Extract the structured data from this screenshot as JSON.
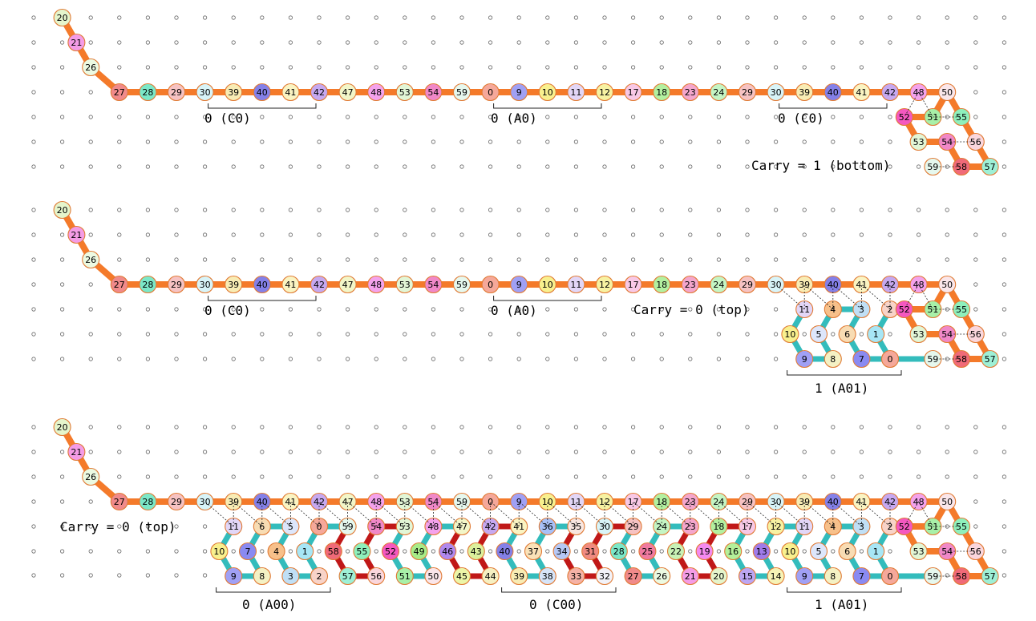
{
  "colors": {
    "orange": "#f47a2a",
    "teal": "#33bcbc",
    "red": "#c01818",
    "bead_stroke": "#e07a34",
    "dot": "#666666",
    "palette": {
      "0": "#f5a89a",
      "1": "#a7e6f5",
      "2": "#f8d3c8",
      "3": "#c0dff5",
      "4": "#f7c08a",
      "5": "#dde6fb",
      "6": "#f8dcb3",
      "7": "#8a8af2",
      "8": "#f4f1c4",
      "9": "#a0a0f5",
      "10": "#f8f08e",
      "11": "#e2d6f7",
      "12": "#f7f2a2",
      "13": "#a07be9",
      "14": "#f6f3b6",
      "15": "#bca6f3",
      "16": "#b4f09a",
      "17": "#f8c8e6",
      "18": "#b3f0a0",
      "19": "#f48af0",
      "20": "#e5f5cc",
      "21": "#f49ce6",
      "22": "#c8f2b6",
      "23": "#f4a6cc",
      "24": "#c4f5c4",
      "25": "#f07aa0",
      "26": "#ecfae2",
      "27": "#f08a8a",
      "28": "#7be8c8",
      "29": "#f6c2c2",
      "30": "#d8f4f8",
      "31": "#f08a80",
      "32": "#f2f2f8",
      "33": "#f5b2a6",
      "34": "#b6c8f5",
      "35": "#f8e6e0",
      "36": "#a8c0f7",
      "37": "#fae2b8",
      "38": "#d6e4f8",
      "39": "#f8ecb4",
      "40": "#8480e8",
      "41": "#faf4c2",
      "42": "#c6a8f0",
      "43": "#dcf09c",
      "44": "#f6f0c2",
      "45": "#ecf6a8",
      "46": "#b088ee",
      "47": "#f2f6c8",
      "48": "#f4a2ec",
      "49": "#a8ec88",
      "50": "#fae6ea",
      "51": "#a8f0a8",
      "52": "#f458c0",
      "53": "#e2f6d6",
      "54": "#f088c8",
      "55": "#8ef0bc",
      "56": "#fad6dc",
      "57": "#9ef0d6",
      "58": "#f06a78",
      "59": "#e6f8ee"
    }
  },
  "panels": [
    {
      "id": "panel-1",
      "labels": [
        "0 (C0)",
        "0 (A0)",
        "0 (C0)",
        "Carry = 1 (bottom)"
      ],
      "top_row": [
        "27",
        "28",
        "29",
        "30",
        "39",
        "40",
        "41",
        "42",
        "47",
        "48",
        "53",
        "54",
        "59",
        "0",
        "9",
        "10",
        "11",
        "12",
        "17",
        "18",
        "23",
        "24",
        "29",
        "30",
        "39",
        "40",
        "41",
        "42",
        "48",
        "50"
      ],
      "diag": [
        "20",
        "21",
        "26"
      ],
      "tail": [
        "52",
        "51",
        "55",
        "53",
        "54",
        "56",
        "59",
        "58",
        "57"
      ],
      "blocks": []
    },
    {
      "id": "panel-2",
      "labels": [
        "0 (C0)",
        "0 (A0)",
        "Carry = 0 (top)",
        "1 (A01)"
      ],
      "top_row": [
        "27",
        "28",
        "29",
        "30",
        "39",
        "40",
        "41",
        "42",
        "47",
        "48",
        "53",
        "54",
        "59",
        "0",
        "9",
        "10",
        "11",
        "12",
        "17",
        "18",
        "23",
        "24",
        "29",
        "30",
        "39",
        "40",
        "41",
        "42",
        "48",
        "50"
      ],
      "diag": [
        "20",
        "21",
        "26"
      ],
      "tail": [
        "52",
        "51",
        "55",
        "53",
        "54",
        "56",
        "59",
        "58",
        "57"
      ],
      "blocks": [
        {
          "row1": [
            "11",
            "4",
            "3",
            "2"
          ],
          "row2": [
            "10",
            "5",
            "6",
            "1"
          ],
          "row3": [
            "9",
            "8",
            "7",
            "0"
          ]
        }
      ]
    },
    {
      "id": "panel-3",
      "labels": [
        "Carry = 0 (top)",
        "0 (A00)",
        "0 (C00)",
        "1 (A01)"
      ],
      "top_row": [
        "27",
        "28",
        "29",
        "30",
        "39",
        "40",
        "41",
        "42",
        "47",
        "48",
        "53",
        "54",
        "59",
        "0",
        "9",
        "10",
        "11",
        "12",
        "17",
        "18",
        "23",
        "24",
        "29",
        "30",
        "39",
        "40",
        "41",
        "42",
        "48",
        "50"
      ],
      "diag": [
        "20",
        "21",
        "26"
      ],
      "tail": [
        "52",
        "51",
        "55",
        "53",
        "54",
        "56",
        "59",
        "58",
        "57"
      ],
      "blocks": [
        {
          "row1": [
            "11",
            "6",
            "5",
            "0",
            "59",
            "54",
            "53",
            "48",
            "47",
            "42",
            "41",
            "36",
            "35",
            "30",
            "29",
            "24",
            "23",
            "18",
            "17",
            "12",
            "11",
            "4",
            "3",
            "2"
          ],
          "row2": [
            "10",
            "7",
            "4",
            "1",
            "58",
            "55",
            "52",
            "49",
            "46",
            "43",
            "40",
            "37",
            "34",
            "31",
            "28",
            "25",
            "22",
            "19",
            "16",
            "13",
            "10",
            "5",
            "6",
            "1"
          ],
          "row3": [
            "9",
            "8",
            "3",
            "2",
            "57",
            "56",
            "51",
            "50",
            "45",
            "44",
            "39",
            "38",
            "33",
            "32",
            "27",
            "26",
            "21",
            "20",
            "15",
            "14",
            "9",
            "8",
            "7",
            "0"
          ]
        }
      ]
    }
  ]
}
